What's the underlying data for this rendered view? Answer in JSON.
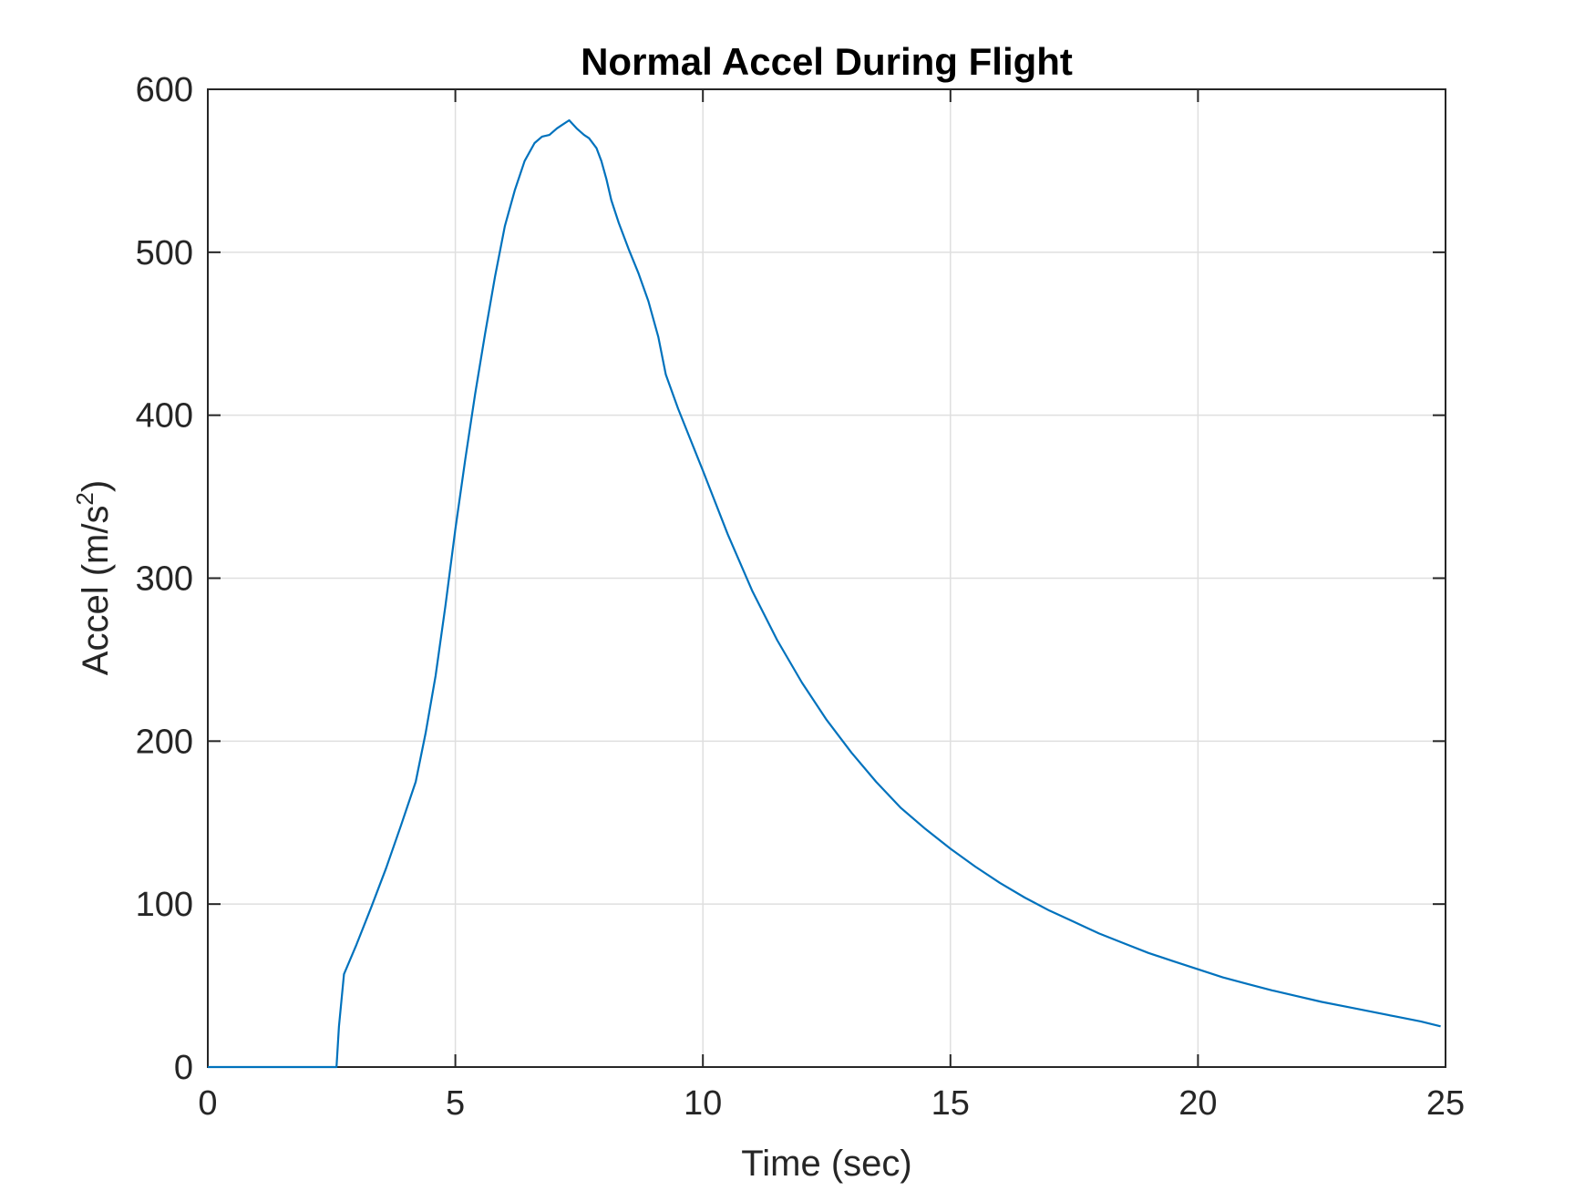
{
  "chart_data": {
    "type": "line",
    "title": "Normal Accel During Flight",
    "xlabel": "Time (sec)",
    "ylabel": "Accel (m/s",
    "ylabel_superscript": "2",
    "ylabel_suffix": ")",
    "xlim": [
      0,
      25
    ],
    "ylim": [
      0,
      600
    ],
    "xticks": [
      0,
      5,
      10,
      15,
      20,
      25
    ],
    "yticks": [
      0,
      100,
      200,
      300,
      400,
      500,
      600
    ],
    "xtick_labels": [
      "0",
      "5",
      "10",
      "15",
      "20",
      "25"
    ],
    "ytick_labels": [
      "0",
      "100",
      "200",
      "300",
      "400",
      "500",
      "600"
    ],
    "grid": true,
    "colors": {
      "line": "#0072BD",
      "grid": "#dfdfdf",
      "axis": "#262626"
    },
    "series": [
      {
        "x": [
          0,
          2.6,
          2.65,
          2.75,
          3.0,
          3.3,
          3.6,
          3.9,
          4.2,
          4.4,
          4.6,
          4.8,
          5.0,
          5.2,
          5.4,
          5.6,
          5.8,
          6.0,
          6.2,
          6.4,
          6.6,
          6.75,
          6.9,
          7.05,
          7.15,
          7.3,
          7.45,
          7.6,
          7.7,
          7.85,
          7.95,
          8.05,
          8.15,
          8.3,
          8.5,
          8.7,
          8.9,
          9.1,
          9.25,
          9.5,
          9.75,
          10.0,
          10.5,
          11.0,
          11.5,
          12.0,
          12.5,
          13.0,
          13.5,
          14.0,
          14.5,
          15.0,
          15.5,
          16.0,
          16.5,
          17.0,
          17.5,
          18.0,
          18.5,
          19.0,
          19.5,
          20.0,
          20.5,
          21.0,
          21.5,
          22.0,
          22.5,
          23.0,
          23.5,
          24.0,
          24.5,
          24.9
        ],
        "y": [
          0,
          0,
          25,
          57,
          75,
          98,
          122,
          148,
          175,
          205,
          240,
          283,
          330,
          373,
          413,
          450,
          485,
          516,
          538,
          556,
          567,
          571,
          572,
          576,
          578,
          581,
          576,
          572,
          570,
          564,
          556,
          545,
          532,
          518,
          502,
          487,
          470,
          448,
          425,
          404,
          385,
          366,
          327,
          292,
          262,
          236,
          213,
          193,
          175,
          159,
          146,
          134,
          123,
          113,
          104,
          96,
          89,
          82,
          76,
          70,
          65,
          60,
          55,
          51,
          47,
          43.5,
          40,
          37,
          34,
          31,
          28,
          25
        ]
      }
    ]
  }
}
